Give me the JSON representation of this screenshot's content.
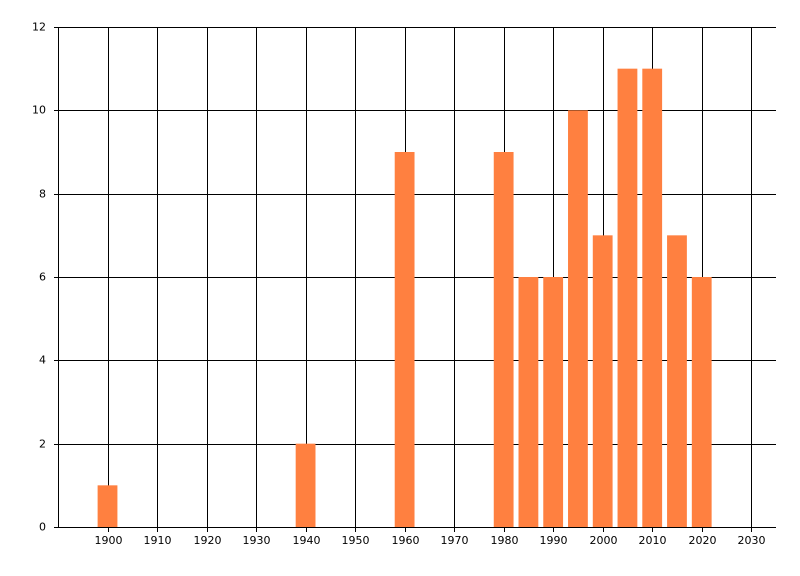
{
  "chart_data": {
    "type": "bar",
    "x": [
      1900,
      1940,
      1960,
      1980,
      1985,
      1990,
      1995,
      2000,
      2005,
      2010,
      2015,
      2020
    ],
    "values": [
      1,
      2,
      9,
      9,
      6,
      6,
      10,
      7,
      11,
      11,
      7,
      6
    ],
    "color": "#ff8040",
    "bar_width": 4,
    "xlim": [
      1890,
      2035
    ],
    "xticks": [
      1900,
      1910,
      1920,
      1930,
      1940,
      1950,
      1960,
      1970,
      1980,
      1990,
      2000,
      2010,
      2020,
      2030
    ],
    "ylim": [
      0,
      12
    ],
    "yticks": [
      0,
      2,
      4,
      6,
      8,
      10,
      12
    ],
    "grid": true
  }
}
